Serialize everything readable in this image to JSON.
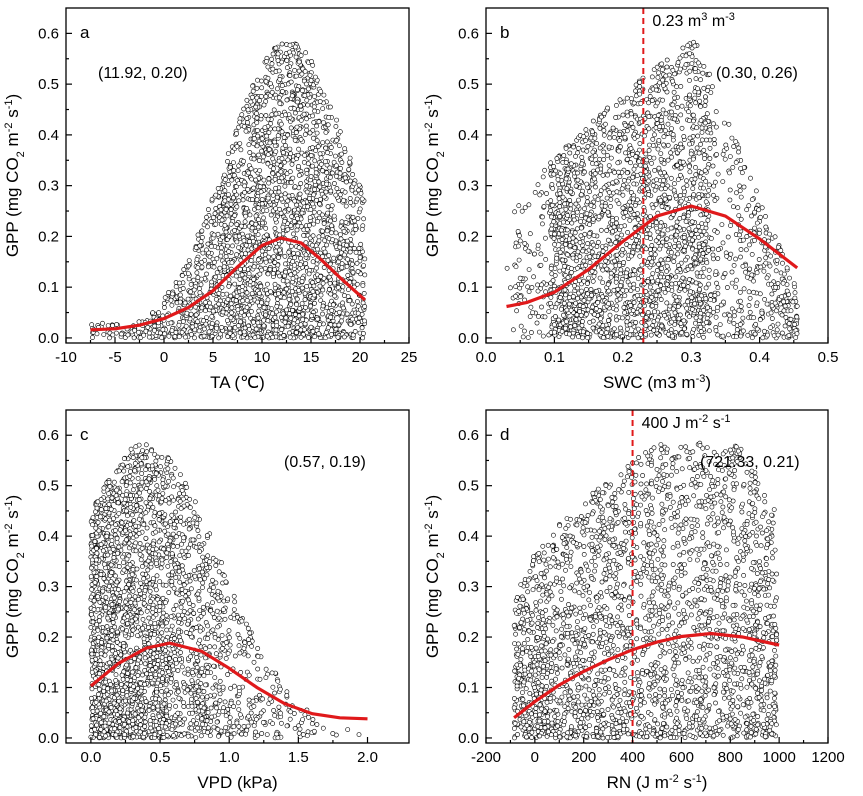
{
  "chart_data": [
    {
      "panel": "a",
      "type": "scatter",
      "xlabel": "TA (℃)",
      "ylabel": "GPP (mg CO2 m-2 s-1)",
      "xlim": [
        -10,
        25
      ],
      "ylim": [
        -0.01,
        0.65
      ],
      "xticks": [
        -10,
        -5,
        0,
        5,
        10,
        15,
        20,
        25
      ],
      "yticks": [
        0.0,
        0.1,
        0.2,
        0.3,
        0.4,
        0.5,
        0.6
      ],
      "x_range": [
        -7.5,
        20.5
      ],
      "y_max": 0.585,
      "annotation": "(11.92, 0.20)",
      "peak": {
        "x": 11.92,
        "y": 0.2
      },
      "fit_curve": {
        "x": [
          -7.5,
          -5,
          -2.5,
          0,
          2.5,
          5,
          7.5,
          10,
          11.92,
          14,
          16,
          18,
          20.5
        ],
        "y": [
          0.016,
          0.018,
          0.025,
          0.038,
          0.06,
          0.093,
          0.14,
          0.182,
          0.197,
          0.187,
          0.155,
          0.118,
          0.075
        ]
      },
      "threshold": null
    },
    {
      "panel": "b",
      "type": "scatter",
      "xlabel": "SWC (m3 m-3)",
      "ylabel": "GPP (mg CO2 m-2 s-1)",
      "xlim": [
        0.0,
        0.5
      ],
      "ylim": [
        -0.01,
        0.65
      ],
      "xticks": [
        0.0,
        0.1,
        0.2,
        0.3,
        0.4,
        0.5
      ],
      "yticks": [
        0.0,
        0.1,
        0.2,
        0.3,
        0.4,
        0.5,
        0.6
      ],
      "x_range": [
        0.03,
        0.455
      ],
      "y_max": 0.59,
      "annotation": "(0.30, 0.26)",
      "peak": {
        "x": 0.3,
        "y": 0.26
      },
      "fit_curve": {
        "x": [
          0.03,
          0.06,
          0.1,
          0.15,
          0.2,
          0.25,
          0.3,
          0.35,
          0.4,
          0.455
        ],
        "y": [
          0.062,
          0.07,
          0.09,
          0.135,
          0.19,
          0.24,
          0.26,
          0.24,
          0.195,
          0.138
        ]
      },
      "threshold": {
        "x": 0.23,
        "label": "0.23 m3 m-3"
      }
    },
    {
      "panel": "c",
      "type": "scatter",
      "xlabel": "VPD (kPa)",
      "ylabel": "GPP (mg CO2 m-2 s-1)",
      "xlim": [
        -0.18,
        2.3
      ],
      "ylim": [
        -0.01,
        0.65
      ],
      "xticks": [
        0.0,
        0.5,
        1.0,
        1.5,
        2.0
      ],
      "yticks": [
        0.0,
        0.1,
        0.2,
        0.3,
        0.4,
        0.5,
        0.6
      ],
      "x_range": [
        0.0,
        2.0
      ],
      "y_max": 0.585,
      "annotation": "(0.57, 0.19)",
      "peak": {
        "x": 0.57,
        "y": 0.19
      },
      "fit_curve": {
        "x": [
          0.0,
          0.2,
          0.4,
          0.57,
          0.8,
          1.0,
          1.2,
          1.4,
          1.6,
          1.8,
          2.0
        ],
        "y": [
          0.103,
          0.148,
          0.178,
          0.188,
          0.172,
          0.138,
          0.1,
          0.068,
          0.048,
          0.04,
          0.038
        ]
      },
      "threshold": null
    },
    {
      "panel": "d",
      "type": "scatter",
      "xlabel": "RN (J m-2 s-1)",
      "ylabel": "GPP (mg CO2 m-2 s-1)",
      "xlim": [
        -200,
        1200
      ],
      "ylim": [
        -0.01,
        0.65
      ],
      "xticks": [
        -200,
        0,
        200,
        400,
        600,
        800,
        1000,
        1200
      ],
      "yticks": [
        0.0,
        0.1,
        0.2,
        0.3,
        0.4,
        0.5,
        0.6
      ],
      "x_range": [
        -85,
        990
      ],
      "y_max": 0.585,
      "annotation": "(721.33, 0.21)",
      "peak": {
        "x": 721.33,
        "y": 0.21
      },
      "fit_curve": {
        "x": [
          -85,
          0,
          100,
          200,
          300,
          400,
          500,
          600,
          721.33,
          850,
          1000
        ],
        "y": [
          0.04,
          0.072,
          0.105,
          0.132,
          0.155,
          0.175,
          0.19,
          0.201,
          0.207,
          0.2,
          0.184
        ]
      },
      "threshold": {
        "x": 400,
        "label": "400 J m-2 s-1"
      }
    }
  ]
}
